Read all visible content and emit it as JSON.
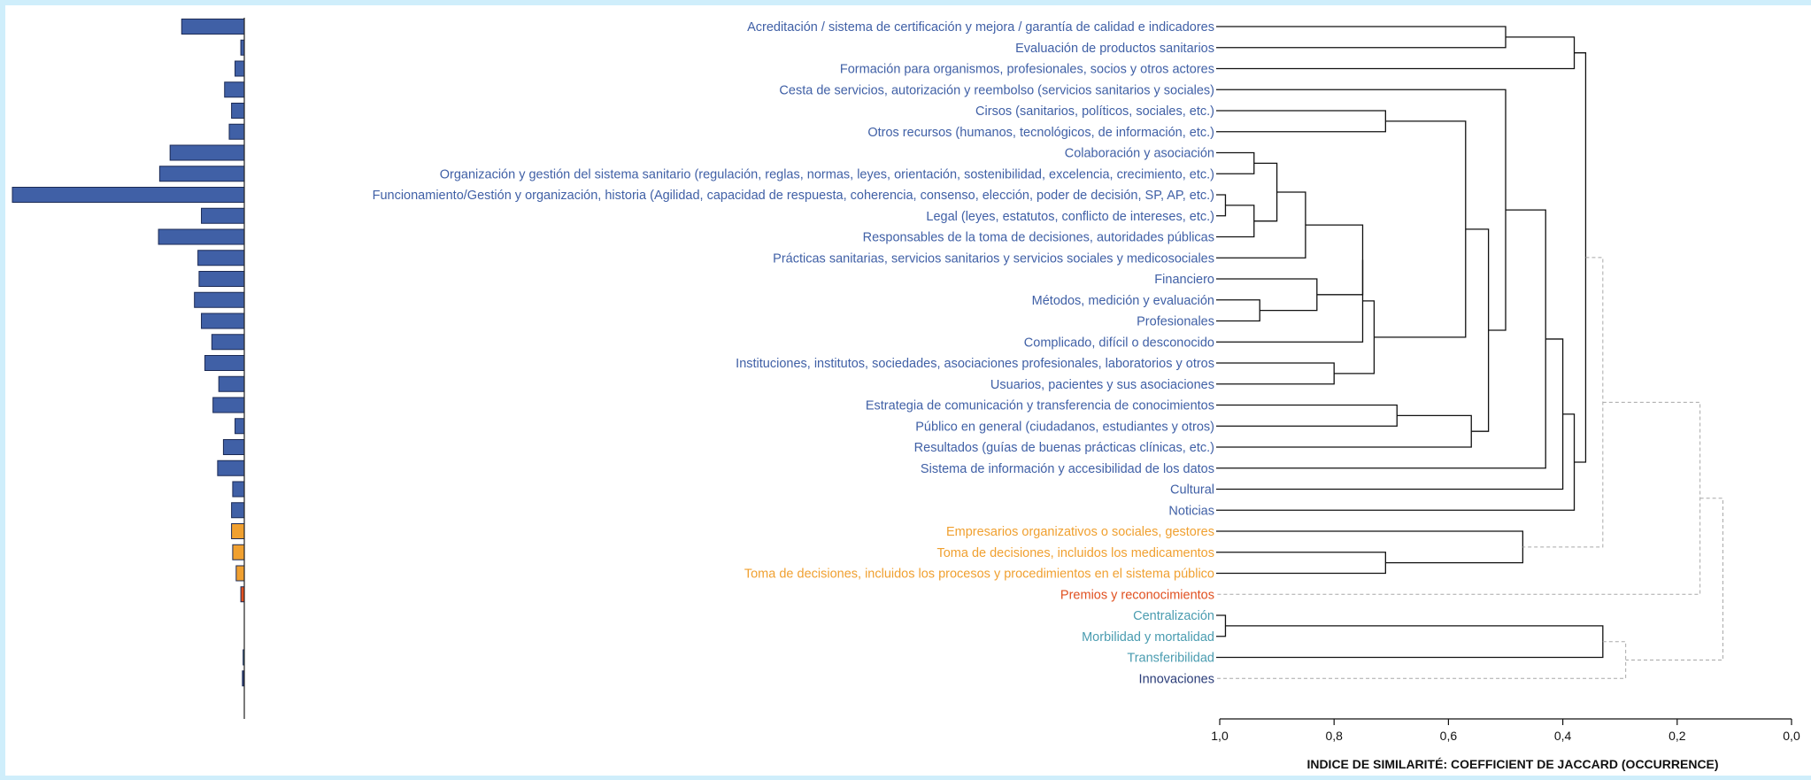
{
  "chart_data": {
    "type": "dendrogram",
    "xlabel": "INDICE DE SIMILARITÉ: COEFFICIENT DE JACCARD (OCCURRENCE)",
    "xlim": [
      1.0,
      0.0
    ],
    "x_ticks": [
      "1,0",
      "0,8",
      "0,6",
      "0,4",
      "0,2",
      "0,0"
    ],
    "leaves": [
      {
        "label": "Acreditación / sistema de certificación y mejora / garantía de calidad e indicadores",
        "bar": 0.27,
        "color": "#4060a6"
      },
      {
        "label": "Evaluación de productos sanitarios",
        "bar": 0.015,
        "color": "#4060a6"
      },
      {
        "label": "Formación para organismos, profesionales, socios y otros actores",
        "bar": 0.04,
        "color": "#4060a6"
      },
      {
        "label": "Cesta de servicios, autorización y reembolso (servicios sanitarios y sociales)",
        "bar": 0.085,
        "color": "#4060a6"
      },
      {
        "label": "Cirsos (sanitarios, políticos, sociales, etc.)",
        "bar": 0.055,
        "color": "#4060a6"
      },
      {
        "label": "Otros recursos (humanos, tecnológicos, de información, etc.)",
        "bar": 0.065,
        "color": "#4060a6"
      },
      {
        "label": "Colaboración y asociación",
        "bar": 0.32,
        "color": "#4060a6"
      },
      {
        "label": "Organización y gestión del sistema sanitario (regulación, reglas, normas, leyes, orientación, sostenibilidad, excelencia, crecimiento, etc.)",
        "bar": 0.365,
        "color": "#4060a6"
      },
      {
        "label": "Funcionamiento/Gestión y organización, historia (Agilidad, capacidad de respuesta, coherencia, consenso, elección, poder de decisión, SP, AP, etc.)",
        "bar": 1.0,
        "color": "#4060a6"
      },
      {
        "label": "Legal (leyes, estatutos, conflicto de intereses, etc.)",
        "bar": 0.185,
        "color": "#4060a6"
      },
      {
        "label": "Responsables de la toma de decisiones, autoridades públicas",
        "bar": 0.37,
        "color": "#4060a6"
      },
      {
        "label": "Prácticas sanitarias, servicios sanitarios y servicios sociales y medicosociales",
        "bar": 0.2,
        "color": "#4060a6"
      },
      {
        "label": "Financiero",
        "bar": 0.195,
        "color": "#4060a6"
      },
      {
        "label": "Métodos, medición y evaluación",
        "bar": 0.215,
        "color": "#4060a6"
      },
      {
        "label": "Profesionales",
        "bar": 0.185,
        "color": "#4060a6"
      },
      {
        "label": "Complicado, difícil o desconocido",
        "bar": 0.14,
        "color": "#4060a6"
      },
      {
        "label": "Instituciones, institutos, sociedades, asociaciones profesionales, laboratorios y otros",
        "bar": 0.17,
        "color": "#4060a6"
      },
      {
        "label": "Usuarios, pacientes y sus asociaciones",
        "bar": 0.11,
        "color": "#4060a6"
      },
      {
        "label": "Estrategia de comunicación y transferencia de conocimientos",
        "bar": 0.135,
        "color": "#4060a6"
      },
      {
        "label": "Público en general (ciudadanos, estudiantes y otros)",
        "bar": 0.04,
        "color": "#4060a6"
      },
      {
        "label": "Resultados (guías de buenas prácticas clínicas, etc.)",
        "bar": 0.09,
        "color": "#4060a6"
      },
      {
        "label": "Sistema de información y accesibilidad de los datos",
        "bar": 0.115,
        "color": "#4060a6"
      },
      {
        "label": "Cultural",
        "bar": 0.05,
        "color": "#4060a6"
      },
      {
        "label": "Noticias",
        "bar": 0.055,
        "color": "#4060a6"
      },
      {
        "label": "Empresarios organizativos o sociales, gestores",
        "bar": 0.055,
        "color": "#f0a030"
      },
      {
        "label": "Toma de decisiones, incluidos los medicamentos",
        "bar": 0.05,
        "color": "#f0a030"
      },
      {
        "label": "Toma de decisiones, incluidos los procesos y procedimientos en el sistema público",
        "bar": 0.035,
        "color": "#f0a030"
      },
      {
        "label": "Premios y reconocimientos",
        "bar": 0.015,
        "color": "#e05020"
      },
      {
        "label": "Centralización",
        "bar": 0.0,
        "color": "#4a9cb0"
      },
      {
        "label": "Morbilidad y mortalidad",
        "bar": 0.0,
        "color": "#4a9cb0"
      },
      {
        "label": "Transferibilidad",
        "bar": 0.005,
        "color": "#4a9cb0"
      },
      {
        "label": "Innovaciones",
        "bar": 0.008,
        "color": "#2a3c78"
      }
    ],
    "label_colors": {
      "main": "#4060a6",
      "orange": "#f0a030",
      "red": "#e05020",
      "teal": "#4a9cb0",
      "dark": "#2a3c78"
    },
    "merges": [
      {
        "a": 28,
        "b": 29,
        "h": 0.99,
        "style": "solid"
      },
      {
        "a": 8,
        "b": 9,
        "h": 0.99,
        "style": "solid"
      },
      {
        "a": 6,
        "b": 7,
        "h": 0.94,
        "style": "solid"
      },
      {
        "a": 33,
        "b": 10,
        "h": 0.94,
        "style": "solid"
      },
      {
        "a": 13,
        "b": 14,
        "h": 0.93,
        "style": "solid"
      },
      {
        "a": 34,
        "b": 35,
        "h": 0.9,
        "style": "solid"
      },
      {
        "a": 37,
        "b": 11,
        "h": 0.85,
        "style": "solid"
      },
      {
        "a": 12,
        "b": 36,
        "h": 0.83,
        "style": "solid"
      },
      {
        "a": 16,
        "b": 17,
        "h": 0.8,
        "style": "solid"
      },
      {
        "a": 38,
        "b": 39,
        "h": 0.75,
        "style": "solid"
      },
      {
        "a": 41,
        "b": 15,
        "h": 0.75,
        "style": "solid"
      },
      {
        "a": 4,
        "b": 5,
        "h": 0.71,
        "style": "solid"
      },
      {
        "a": 25,
        "b": 26,
        "h": 0.71,
        "style": "solid"
      },
      {
        "a": 18,
        "b": 19,
        "h": 0.69,
        "style": "solid"
      },
      {
        "a": 42,
        "b": 40,
        "h": 0.73,
        "style": "solid"
      },
      {
        "a": 45,
        "b": 20,
        "h": 0.56,
        "style": "solid"
      },
      {
        "a": 43,
        "b": 46,
        "h": 0.57,
        "style": "solid"
      },
      {
        "a": 47,
        "b": 48,
        "h": 0.53,
        "style": "solid"
      },
      {
        "a": 0,
        "b": 1,
        "h": 0.5,
        "style": "solid"
      },
      {
        "a": 3,
        "b": 49,
        "h": 0.5,
        "style": "solid"
      },
      {
        "a": 24,
        "b": 44,
        "h": 0.47,
        "style": "solid"
      },
      {
        "a": 51,
        "b": 21,
        "h": 0.43,
        "style": "solid"
      },
      {
        "a": 53,
        "b": 22,
        "h": 0.4,
        "style": "solid"
      },
      {
        "a": 54,
        "b": 23,
        "h": 0.38,
        "style": "solid"
      },
      {
        "a": 50,
        "b": 2,
        "h": 0.38,
        "style": "solid"
      },
      {
        "a": 56,
        "b": 55,
        "h": 0.36,
        "style": "solid"
      },
      {
        "a": 32,
        "b": 30,
        "h": 0.33,
        "style": "solid"
      },
      {
        "a": 57,
        "b": 52,
        "h": 0.33,
        "style": "dashed"
      },
      {
        "a": 58,
        "b": 31,
        "h": 0.29,
        "style": "dashed"
      },
      {
        "a": 59,
        "b": 27,
        "h": 0.16,
        "style": "dashed"
      },
      {
        "a": 61,
        "b": 60,
        "h": 0.12,
        "style": "dashed"
      }
    ]
  }
}
